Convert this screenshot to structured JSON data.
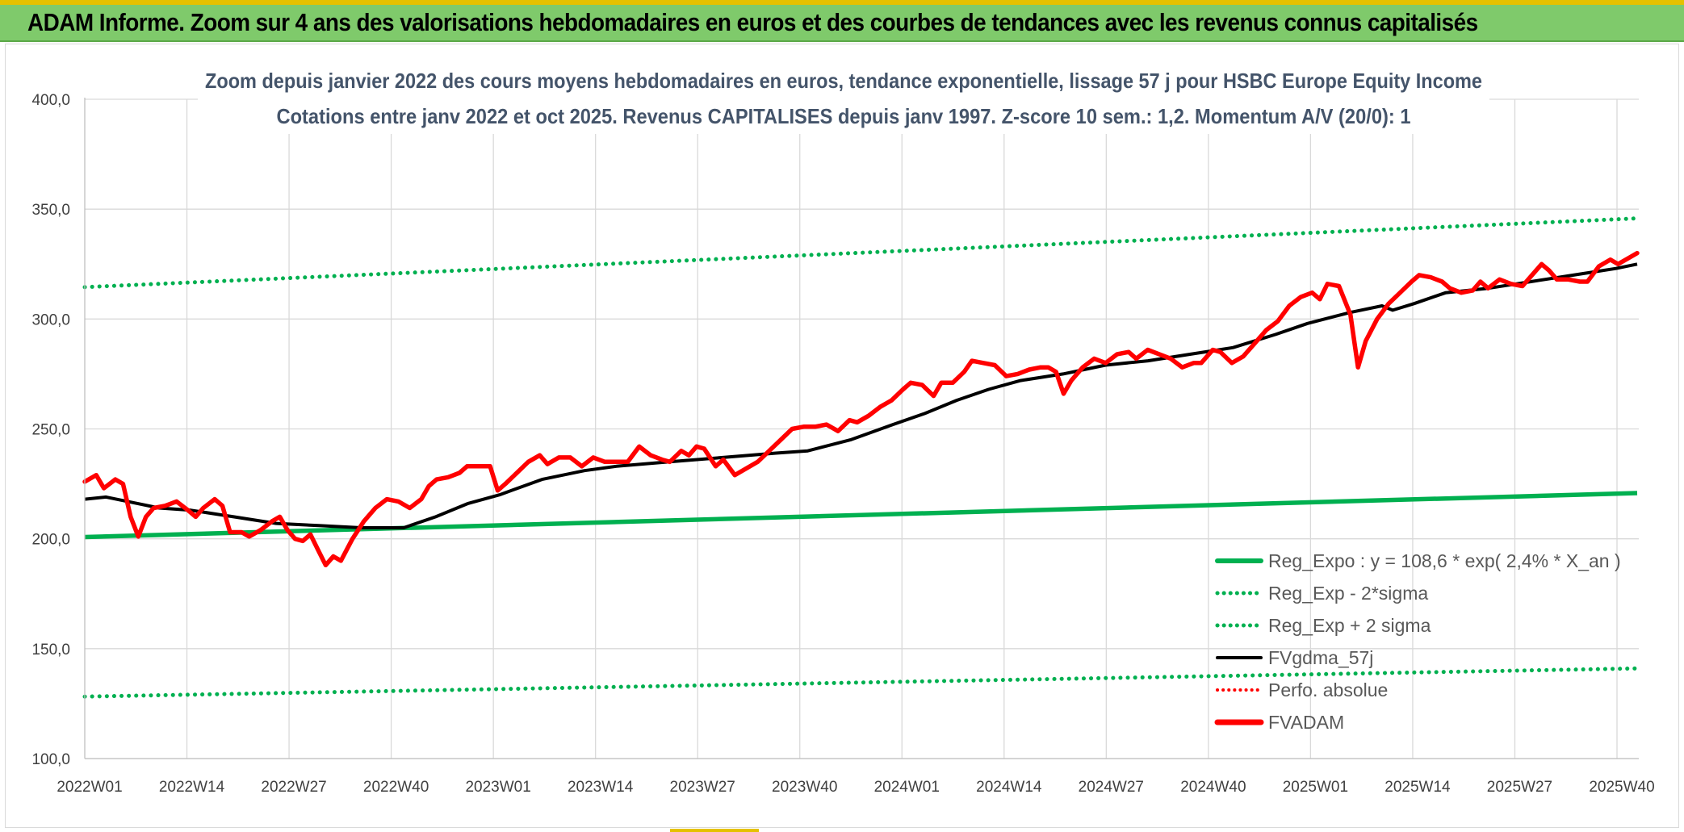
{
  "header": {
    "title": "ADAM Informe. Zoom sur 4 ans des valorisations hebdomadaires en euros et des courbes de tendances avec les revenus connus capitalisés"
  },
  "chart_data": {
    "type": "line",
    "title_line1": "Zoom depuis janvier 2022 des cours moyens hebdomadaires en euros, tendance exponentielle, lissage 57 j pour HSBC Europe Equity Income",
    "title_line2": "Cotations entre janv 2022 et oct 2025. Revenus CAPITALISES depuis janv 1997. Z-score 10 sem.: 1,2. Momentum A/V (20/0): 1",
    "ylim": [
      100,
      400
    ],
    "yticks": [
      "400,0",
      "350,0",
      "300,0",
      "250,0",
      "200,0",
      "150,0",
      "100,0"
    ],
    "ytick_values": [
      400,
      350,
      300,
      250,
      200,
      150,
      100
    ],
    "xticks": [
      "2022W01",
      "2022W14",
      "2022W27",
      "2022W40",
      "2023W01",
      "2023W14",
      "2023W27",
      "2023W40",
      "2024W01",
      "2024W14",
      "2024W27",
      "2024W40",
      "2025W01",
      "2025W14",
      "2025W27",
      "2025W40"
    ],
    "x_week_count": 200,
    "grid": true,
    "legend_position": "bottom-right",
    "colors": {
      "reg_expo": "#00b050",
      "sigma": "#00b050",
      "fvgdma": "#000000",
      "perfo": "#ff0000",
      "fvadam": "#ff0000",
      "grid": "#d9d9d9"
    },
    "series": [
      {
        "name": "Reg_Expo : y = 108,6 * exp( 2,4% *  X_an )",
        "style": "solid-thick",
        "points": [
          [
            0,
            200.8
          ],
          [
            200,
            220.8
          ]
        ]
      },
      {
        "name": "Reg_Exp - 2*sigma",
        "style": "dotted",
        "points": [
          [
            0,
            128.2
          ],
          [
            200,
            141.0
          ]
        ]
      },
      {
        "name": "Reg_Exp + 2 sigma",
        "style": "dotted",
        "points": [
          [
            0,
            314.5
          ],
          [
            200,
            345.8
          ]
        ]
      },
      {
        "name": "FVgdma_57j",
        "style": "solid",
        "points": [
          [
            0,
            218
          ],
          [
            4,
            219
          ],
          [
            10,
            216
          ],
          [
            14,
            214
          ],
          [
            20,
            213
          ],
          [
            28,
            210
          ],
          [
            36,
            207
          ],
          [
            44,
            206
          ],
          [
            52,
            205
          ],
          [
            60,
            205
          ],
          [
            66,
            210
          ],
          [
            72,
            216
          ],
          [
            78,
            220
          ],
          [
            86,
            227
          ],
          [
            94,
            231
          ],
          [
            100,
            233
          ],
          [
            110,
            235
          ],
          [
            120,
            237
          ],
          [
            130,
            239
          ],
          [
            136,
            240
          ],
          [
            144,
            245
          ],
          [
            152,
            252
          ],
          [
            158,
            257
          ],
          [
            164,
            263
          ],
          [
            170,
            268
          ],
          [
            176,
            272
          ],
          [
            184,
            275
          ],
          [
            192,
            279
          ],
          [
            200,
            281
          ],
          [
            208,
            284
          ],
          [
            216,
            287
          ],
          [
            224,
            293
          ],
          [
            230,
            298
          ],
          [
            238,
            303
          ],
          [
            244,
            306
          ],
          [
            246,
            304
          ],
          [
            250,
            307
          ],
          [
            256,
            312
          ],
          [
            264,
            314
          ],
          [
            272,
            317
          ],
          [
            280,
            320
          ],
          [
            288,
            323
          ],
          [
            292,
            325
          ]
        ]
      },
      {
        "name": "Perfo. absolue",
        "style": "dotted-red",
        "points": []
      },
      {
        "name": "FVADAM",
        "style": "solid-thick",
        "points": [
          [
            0,
            226
          ],
          [
            3,
            229
          ],
          [
            5,
            223
          ],
          [
            8,
            227
          ],
          [
            10,
            225
          ],
          [
            12,
            210
          ],
          [
            14,
            201
          ],
          [
            16,
            210
          ],
          [
            18,
            214
          ],
          [
            21,
            215
          ],
          [
            24,
            217
          ],
          [
            27,
            213
          ],
          [
            29,
            210
          ],
          [
            31,
            214
          ],
          [
            34,
            218
          ],
          [
            36,
            215
          ],
          [
            38,
            203
          ],
          [
            41,
            203
          ],
          [
            43,
            201
          ],
          [
            46,
            204
          ],
          [
            49,
            208
          ],
          [
            51,
            210
          ],
          [
            53,
            204
          ],
          [
            55,
            200
          ],
          [
            57,
            199
          ],
          [
            59,
            202
          ],
          [
            61,
            195
          ],
          [
            63,
            188
          ],
          [
            65,
            192
          ],
          [
            67,
            190
          ],
          [
            70,
            200
          ],
          [
            73,
            208
          ],
          [
            76,
            214
          ],
          [
            79,
            218
          ],
          [
            82,
            217
          ],
          [
            85,
            214
          ],
          [
            88,
            218
          ],
          [
            90,
            224
          ],
          [
            92,
            227
          ],
          [
            95,
            228
          ],
          [
            98,
            230
          ],
          [
            100,
            233
          ],
          [
            103,
            233
          ],
          [
            106,
            233
          ],
          [
            108,
            222
          ],
          [
            110,
            225
          ],
          [
            113,
            230
          ],
          [
            116,
            235
          ],
          [
            119,
            238
          ],
          [
            121,
            234
          ],
          [
            124,
            237
          ],
          [
            127,
            237
          ],
          [
            130,
            233
          ],
          [
            133,
            237
          ],
          [
            136,
            235
          ],
          [
            139,
            235
          ],
          [
            142,
            235
          ],
          [
            145,
            242
          ],
          [
            148,
            238
          ],
          [
            151,
            236
          ],
          [
            153,
            235
          ],
          [
            156,
            240
          ],
          [
            158,
            238
          ],
          [
            160,
            242
          ],
          [
            162,
            241
          ],
          [
            165,
            233
          ],
          [
            167,
            236
          ],
          [
            170,
            229
          ],
          [
            173,
            232
          ],
          [
            176,
            235
          ],
          [
            179,
            240
          ],
          [
            182,
            245
          ],
          [
            185,
            250
          ],
          [
            188,
            251
          ],
          [
            191,
            251
          ],
          [
            194,
            252
          ],
          [
            197,
            249
          ],
          [
            200,
            254
          ],
          [
            202,
            253
          ],
          [
            205,
            256
          ],
          [
            208,
            260
          ],
          [
            211,
            263
          ],
          [
            214,
            268
          ],
          [
            216,
            271
          ],
          [
            219,
            270
          ],
          [
            222,
            265
          ],
          [
            224,
            271
          ],
          [
            227,
            271
          ],
          [
            230,
            276
          ],
          [
            232,
            281
          ],
          [
            235,
            280
          ],
          [
            238,
            279
          ],
          [
            241,
            274
          ],
          [
            244,
            275
          ],
          [
            247,
            277
          ],
          [
            250,
            278
          ],
          [
            252,
            278
          ],
          [
            254,
            276
          ],
          [
            256,
            266
          ],
          [
            258,
            272
          ],
          [
            261,
            278
          ],
          [
            264,
            282
          ],
          [
            267,
            280
          ],
          [
            270,
            284
          ],
          [
            273,
            285
          ],
          [
            275,
            282
          ],
          [
            278,
            286
          ],
          [
            281,
            284
          ],
          [
            284,
            282
          ],
          [
            287,
            278
          ],
          [
            290,
            280
          ],
          [
            292,
            280
          ],
          [
            295,
            286
          ],
          [
            297,
            285
          ],
          [
            300,
            280
          ],
          [
            303,
            283
          ],
          [
            306,
            289
          ],
          [
            309,
            295
          ],
          [
            312,
            299
          ],
          [
            315,
            306
          ],
          [
            318,
            310
          ],
          [
            321,
            312
          ],
          [
            323,
            309
          ],
          [
            325,
            316
          ],
          [
            328,
            315
          ],
          [
            331,
            302
          ],
          [
            333,
            278
          ],
          [
            335,
            290
          ],
          [
            338,
            300
          ],
          [
            341,
            307
          ],
          [
            344,
            312
          ],
          [
            347,
            317
          ],
          [
            349,
            320
          ],
          [
            352,
            319
          ],
          [
            355,
            317
          ],
          [
            357,
            314
          ],
          [
            360,
            312
          ],
          [
            363,
            313
          ],
          [
            365,
            317
          ],
          [
            367,
            314
          ],
          [
            370,
            318
          ],
          [
            373,
            316
          ],
          [
            376,
            315
          ],
          [
            378,
            319
          ],
          [
            381,
            325
          ],
          [
            383,
            322
          ],
          [
            385,
            318
          ],
          [
            388,
            318
          ],
          [
            391,
            317
          ],
          [
            393,
            317
          ],
          [
            396,
            324
          ],
          [
            399,
            327
          ],
          [
            401,
            325
          ],
          [
            404,
            328
          ],
          [
            406,
            330
          ]
        ]
      }
    ]
  }
}
